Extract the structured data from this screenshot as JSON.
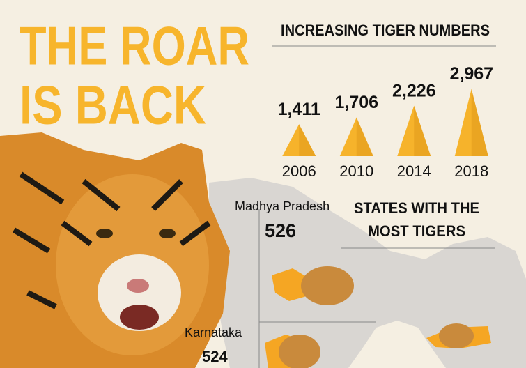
{
  "headline": [
    "THE ROAR",
    "IS BACK"
  ],
  "chart_data": {
    "type": "pyramid",
    "title": "INCREASING TIGER NUMBERS",
    "categories": [
      "2006",
      "2010",
      "2014",
      "2018"
    ],
    "values": [
      1411,
      1706,
      2226,
      2967
    ],
    "value_labels": [
      "1,411",
      "1,706",
      "2,226",
      "2,967"
    ],
    "color": "#f6b32b"
  },
  "states": {
    "title": [
      "STATES WITH THE",
      "MOST TIGERS"
    ],
    "items": [
      {
        "name": "Madhya Pradesh",
        "value": "526"
      },
      {
        "name": "Karnataka",
        "value": "524"
      }
    ]
  }
}
